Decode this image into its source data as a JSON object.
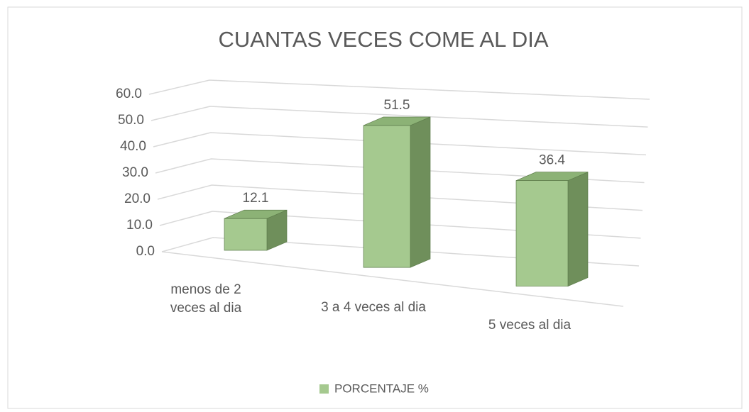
{
  "chart_data": {
    "type": "bar3d",
    "title": "CUANTAS VECES COME AL DIA",
    "categories": [
      "menos de 2 veces al dia",
      "3 a 4 veces al dia",
      "5 veces al dia"
    ],
    "series": [
      {
        "name": "PORCENTAJE %",
        "color": "#a5c98f",
        "values": [
          12.1,
          51.5,
          36.4
        ]
      }
    ],
    "ylim": [
      0,
      60
    ],
    "yticks": [
      {
        "value": 0,
        "label": "0.0"
      },
      {
        "value": 10,
        "label": "10.0"
      },
      {
        "value": 20,
        "label": "20.0"
      },
      {
        "value": 30,
        "label": "30.0"
      },
      {
        "value": 40,
        "label": "40.0"
      },
      {
        "value": 50,
        "label": "50.0"
      },
      {
        "value": 60,
        "label": "60.0"
      }
    ],
    "grid": true,
    "legend": "bottom"
  }
}
